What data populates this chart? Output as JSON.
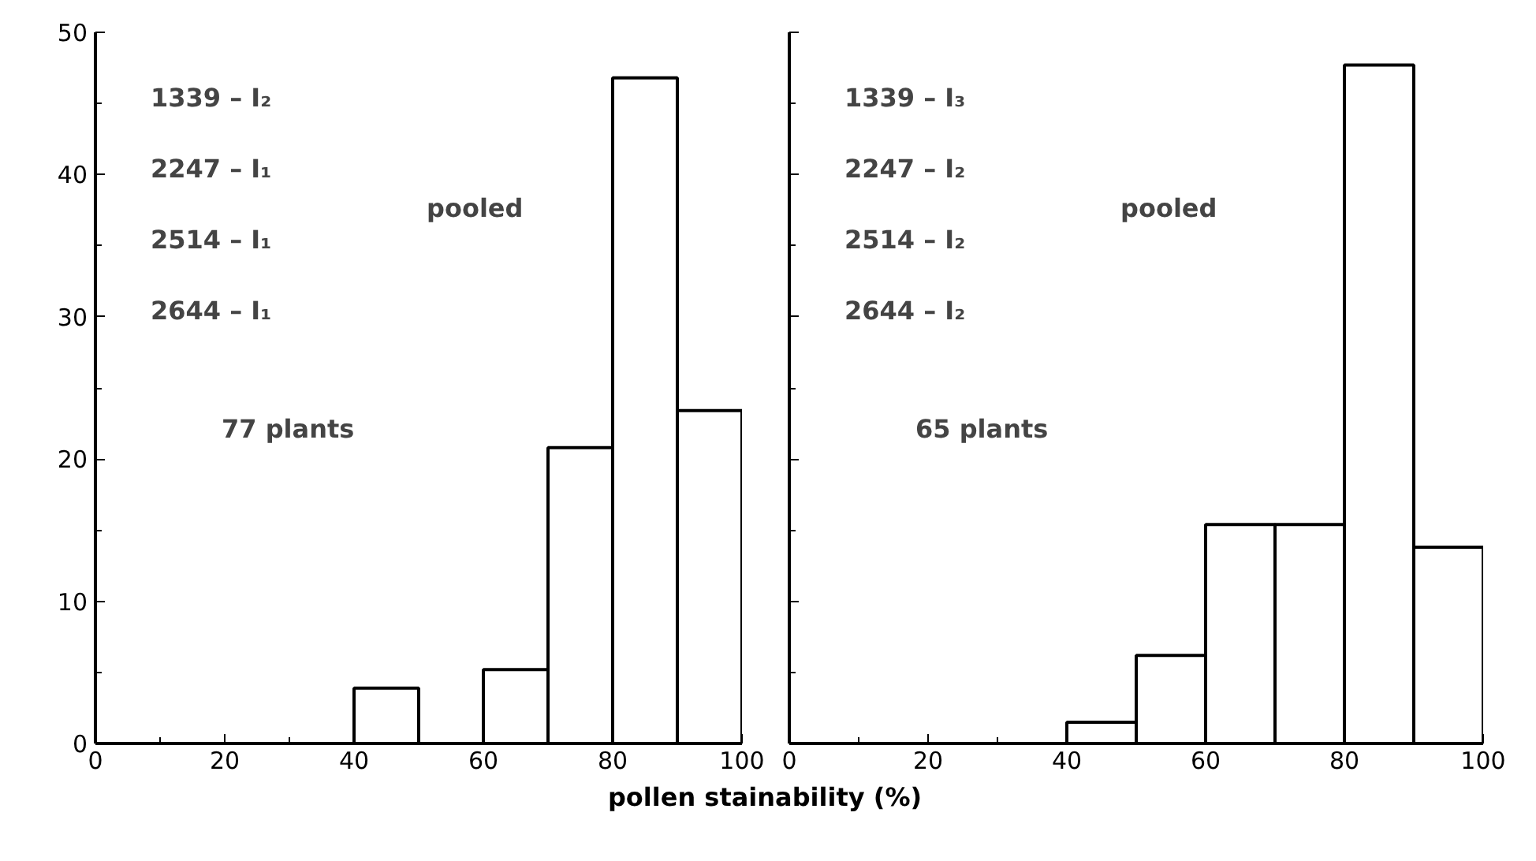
{
  "chart_data": [
    {
      "type": "histogram",
      "bins": [
        0,
        10,
        20,
        30,
        40,
        50,
        60,
        70,
        80,
        90,
        100
      ],
      "values": [
        0,
        0,
        0,
        0,
        3.9,
        0,
        5.2,
        20.8,
        46.8,
        23.4
      ],
      "color": "#000000",
      "xlim": [
        0,
        100
      ],
      "xticks": [
        0,
        20,
        40,
        60,
        80,
        100
      ],
      "ylim": [
        0,
        50
      ],
      "yticks": [
        0,
        10,
        20,
        30,
        40,
        50
      ],
      "xlabel": "pollen stainability (%)",
      "annotations": [
        "1339 – I₂",
        "2247 – I₁",
        "2514 – I₁",
        "2644 – I₁",
        "pooled",
        "77 plants"
      ]
    },
    {
      "type": "histogram",
      "bins": [
        0,
        10,
        20,
        30,
        40,
        50,
        60,
        70,
        80,
        90,
        100
      ],
      "values": [
        0,
        0,
        0,
        0,
        1.5,
        6.2,
        15.4,
        15.4,
        47.7,
        13.8
      ],
      "color": "#000000",
      "xlim": [
        0,
        100
      ],
      "xticks": [
        0,
        20,
        40,
        60,
        80,
        100
      ],
      "ylim": [
        0,
        50
      ],
      "yticks": [
        0,
        10,
        20,
        30,
        40,
        50
      ],
      "tick_labels": "x",
      "annotations": [
        "1339 – I₃",
        "2247 – I₂",
        "2514 – I₂",
        "2644 – I₂",
        "pooled",
        "65 plants"
      ]
    }
  ]
}
